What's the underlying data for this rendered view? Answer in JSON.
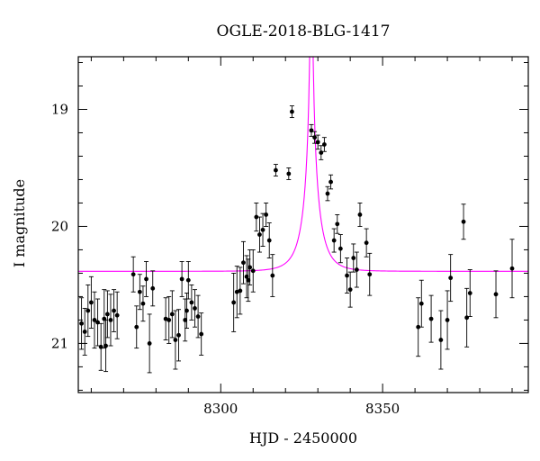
{
  "chart_data": {
    "type": "scatter",
    "title": "OGLE-2018-BLG-1417",
    "xlabel": "HJD - 2450000",
    "ylabel": "I magnitude",
    "xlim": [
      8256,
      8395
    ],
    "ylim": [
      21.42,
      18.55
    ],
    "y_inverted": true,
    "xticks_major": [
      8300,
      8350
    ],
    "xticks_major_labels": [
      "8300",
      "8350"
    ],
    "xtick_minor_step": 10,
    "yticks_major": [
      19,
      20,
      21
    ],
    "yticks_major_labels": [
      "19",
      "20",
      "21"
    ],
    "ytick_minor_step": 0.2,
    "grid": false,
    "colors": {
      "model": "#ff00ff",
      "points": "#000000"
    },
    "model": {
      "t0": 8328.0,
      "fs": 0.135,
      "fb": 0.12,
      "tE": 5.2,
      "u0": 0.03,
      "zp": 18.9
    },
    "series": [
      {
        "x": [
          8257,
          8258,
          8259,
          8260,
          8261,
          8262,
          8263,
          8264,
          8264.5,
          8265,
          8266,
          8267,
          8268,
          8273,
          8274,
          8275,
          8276,
          8277,
          8278,
          8279,
          8283,
          8284,
          8285,
          8286,
          8287,
          8288,
          8289,
          8289.5,
          8290,
          8291,
          8292,
          8293,
          8294,
          8304,
          8305,
          8306,
          8307,
          8308,
          8308.5,
          8309,
          8310,
          8311,
          8312,
          8313,
          8314,
          8315,
          8316,
          8317,
          8321,
          8322,
          8328,
          8329,
          8330,
          8331,
          8332,
          8333,
          8334,
          8335,
          8336,
          8337,
          8339,
          8340,
          8341,
          8342,
          8343,
          8345,
          8346,
          8361,
          8362,
          8365,
          8368,
          8370,
          8371,
          8375,
          8376,
          8377,
          8385,
          8390
        ],
        "y": [
          20.83,
          20.9,
          20.72,
          20.65,
          20.8,
          20.82,
          21.03,
          20.79,
          21.02,
          20.75,
          20.8,
          20.72,
          20.76,
          20.41,
          20.86,
          20.56,
          20.66,
          20.45,
          21.0,
          20.53,
          20.79,
          20.8,
          20.75,
          20.97,
          20.93,
          20.45,
          20.8,
          20.72,
          20.46,
          20.65,
          20.7,
          20.77,
          20.92,
          20.65,
          20.56,
          20.55,
          20.31,
          20.43,
          20.46,
          20.35,
          20.38,
          19.92,
          20.07,
          20.03,
          19.9,
          20.12,
          20.42,
          19.52,
          19.55,
          19.02,
          19.18,
          19.24,
          19.28,
          19.37,
          19.3,
          19.72,
          19.62,
          20.12,
          19.98,
          20.19,
          20.42,
          20.54,
          20.27,
          20.37,
          19.9,
          20.14,
          20.41,
          20.86,
          20.66,
          20.79,
          20.97,
          20.8,
          20.44,
          19.96,
          20.78,
          20.57,
          20.58,
          20.36
        ],
        "yerr": [
          0.22,
          0.2,
          0.22,
          0.22,
          0.24,
          0.2,
          0.2,
          0.25,
          0.22,
          0.2,
          0.22,
          0.18,
          0.2,
          0.15,
          0.18,
          0.15,
          0.15,
          0.15,
          0.25,
          0.15,
          0.18,
          0.2,
          0.2,
          0.25,
          0.22,
          0.15,
          0.18,
          0.15,
          0.16,
          0.15,
          0.16,
          0.18,
          0.18,
          0.25,
          0.22,
          0.2,
          0.18,
          0.18,
          0.18,
          0.15,
          0.18,
          0.12,
          0.15,
          0.14,
          0.1,
          0.15,
          0.18,
          0.05,
          0.05,
          0.05,
          0.05,
          0.05,
          0.06,
          0.06,
          0.06,
          0.06,
          0.06,
          0.1,
          0.08,
          0.12,
          0.15,
          0.15,
          0.12,
          0.15,
          0.1,
          0.12,
          0.18,
          0.25,
          0.2,
          0.2,
          0.25,
          0.25,
          0.2,
          0.15,
          0.25,
          0.2,
          0.2,
          0.25
        ]
      }
    ]
  }
}
